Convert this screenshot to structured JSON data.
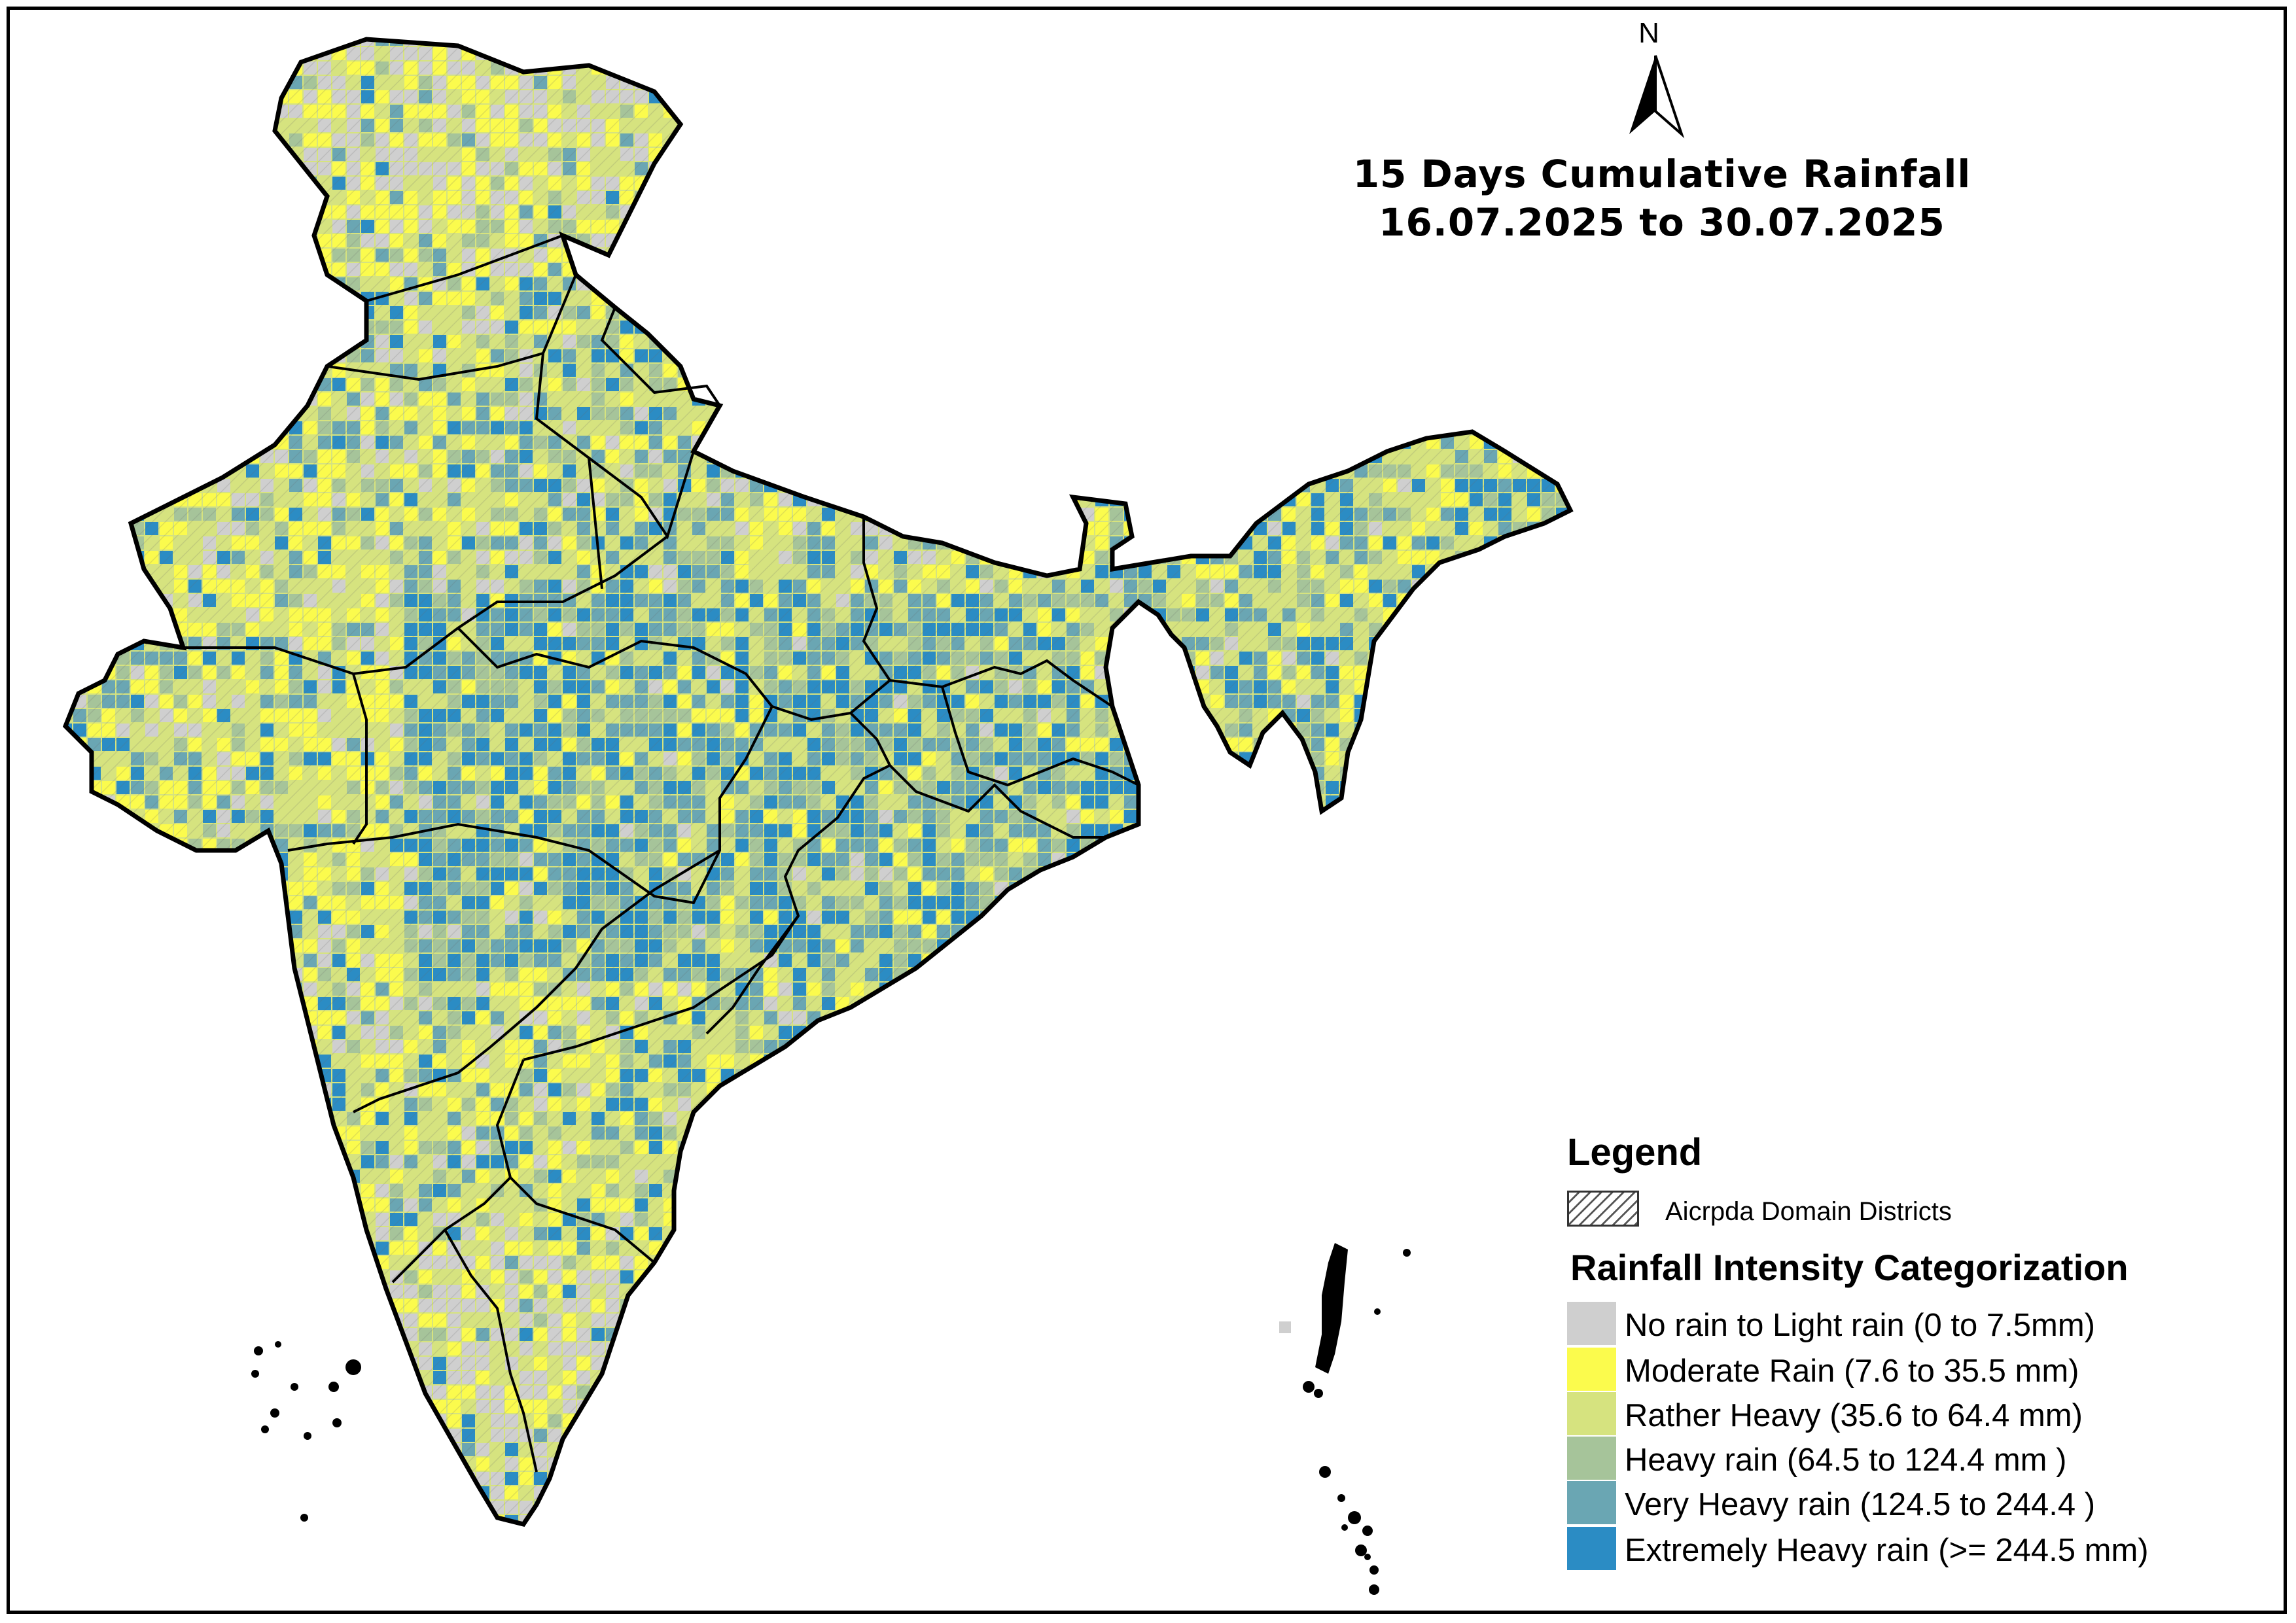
{
  "title": {
    "line1": "15 Days Cumulative Rainfall",
    "line2": "16.07.2025 to 30.07.2025"
  },
  "north_arrow": {
    "label": "N"
  },
  "legend": {
    "title": "Legend",
    "hatch_label": "Aicrpda Domain Districts",
    "category_title": "Rainfall Intensity Categorization",
    "categories": [
      {
        "label": "No rain to Light rain (0 to 7.5mm)",
        "color": "#cfcfcf"
      },
      {
        "label": "Moderate Rain (7.6 to 35.5 mm)",
        "color": "#fbfb4d"
      },
      {
        "label": "Rather Heavy (35.6 to 64.4 mm)",
        "color": "#d6e37f"
      },
      {
        "label": "Heavy rain (64.5 to 124.4 mm )",
        "color": "#a6c49a"
      },
      {
        "label": "Very Heavy rain (124.5 to 244.4 )",
        "color": "#6aa6b3"
      },
      {
        "label": "Extremely Heavy rain  (>= 244.5 mm)",
        "color": "#2b8cc4"
      }
    ]
  }
}
